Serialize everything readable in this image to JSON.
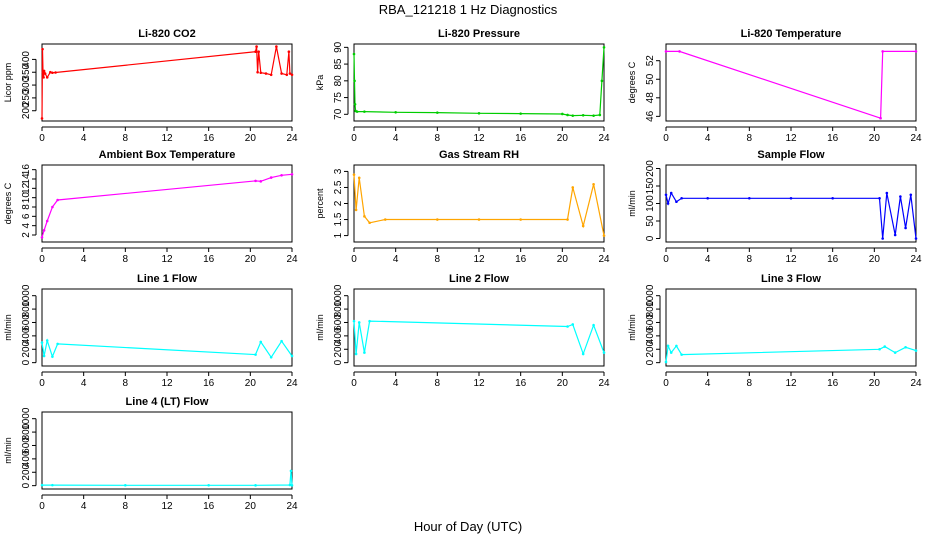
{
  "figure": {
    "title": "RBA_121218  1 Hz Diagnostics",
    "xlabel": "Hour of Day (UTC)"
  },
  "colors": {
    "red": "#ff0000",
    "green": "#00cd00",
    "magenta": "#ff00ff",
    "orange": "#ffa500",
    "blue": "#0000ff",
    "cyan": "#00ffff",
    "axis": "#000000"
  },
  "chart_data": [
    {
      "id": "co2",
      "type": "line",
      "title": "Li-820 CO2",
      "ylabel": "Licor ppm",
      "color": "red",
      "xlim": [
        0,
        24
      ],
      "ylim": [
        160,
        460
      ],
      "xticks": [
        0,
        4,
        8,
        12,
        16,
        20,
        24
      ],
      "yticks": [
        200,
        250,
        300,
        350,
        400
      ],
      "series": [
        {
          "name": "CO2",
          "x": [
            0,
            0.05,
            0.1,
            0.15,
            0.2,
            0.3,
            0.5,
            0.8,
            1.0,
            1.3,
            20.5,
            20.6,
            20.7,
            20.8,
            21.0,
            21.5,
            22.0,
            22.5,
            23.0,
            23.5,
            23.7,
            23.8,
            24.0
          ],
          "y": [
            170,
            440,
            350,
            330,
            355,
            345,
            330,
            350,
            348,
            349,
            430,
            450,
            350,
            430,
            348,
            345,
            340,
            450,
            345,
            340,
            430,
            345,
            340
          ]
        }
      ]
    },
    {
      "id": "pressure",
      "type": "line",
      "title": "Li-820 Pressure",
      "ylabel": "kPa",
      "color": "green",
      "xlim": [
        0,
        24
      ],
      "ylim": [
        68,
        91
      ],
      "xticks": [
        0,
        4,
        8,
        12,
        16,
        20,
        24
      ],
      "yticks": [
        70,
        75,
        80,
        85,
        90
      ],
      "series": [
        {
          "name": "Pressure",
          "x": [
            0,
            0.05,
            0.1,
            0.15,
            0.3,
            1.0,
            4.0,
            8.0,
            12.0,
            16.0,
            20.0,
            20.5,
            21.0,
            22.0,
            23.0,
            23.6,
            23.8,
            24.0
          ],
          "y": [
            88,
            80,
            73,
            71,
            70.8,
            70.8,
            70.6,
            70.5,
            70.3,
            70.2,
            70.1,
            69.8,
            69.6,
            69.7,
            69.6,
            69.8,
            80,
            90
          ]
        }
      ]
    },
    {
      "id": "licor_temp",
      "type": "line",
      "title": "Li-820 Temperature",
      "ylabel": "degrees C",
      "color": "magenta",
      "xlim": [
        0,
        24
      ],
      "ylim": [
        45.5,
        53.8
      ],
      "xticks": [
        0,
        4,
        8,
        12,
        16,
        20,
        24
      ],
      "yticks": [
        46,
        48,
        50,
        52
      ],
      "series": [
        {
          "name": "Temperature",
          "x": [
            0,
            1.3,
            20.6,
            20.8,
            24.0
          ],
          "y": [
            53.0,
            53.0,
            45.8,
            53.0,
            53.0
          ]
        }
      ]
    },
    {
      "id": "ambient_temp",
      "type": "line",
      "title": "Ambient Box Temperature",
      "ylabel": "degrees C",
      "color": "magenta",
      "xlim": [
        0,
        24
      ],
      "ylim": [
        0.5,
        17
      ],
      "xticks": [
        0,
        4,
        8,
        12,
        16,
        20,
        24
      ],
      "yticks": [
        2,
        4,
        6,
        8,
        10,
        12,
        14,
        16
      ],
      "series": [
        {
          "name": "Temperature",
          "x": [
            0,
            0.2,
            0.5,
            1.0,
            1.5,
            20.5,
            21.0,
            22.0,
            23.0,
            24.0
          ],
          "y": [
            1.5,
            3,
            5,
            8,
            9.5,
            13.6,
            13.5,
            14.3,
            14.8,
            15
          ]
        }
      ]
    },
    {
      "id": "rh",
      "type": "line",
      "title": "Gas Stream RH",
      "ylabel": "percent",
      "color": "orange",
      "xlim": [
        0,
        24
      ],
      "ylim": [
        0.8,
        3.2
      ],
      "xticks": [
        0,
        4,
        8,
        12,
        16,
        20,
        24
      ],
      "yticks": [
        1.0,
        1.5,
        2.0,
        2.5,
        3.0
      ],
      "series": [
        {
          "name": "RH",
          "x": [
            0,
            0.2,
            0.5,
            1.0,
            1.5,
            3.0,
            8.0,
            12.0,
            16.0,
            20.5,
            21.0,
            22.0,
            23.0,
            24.0
          ],
          "y": [
            2.9,
            1.8,
            2.8,
            1.6,
            1.4,
            1.5,
            1.5,
            1.5,
            1.5,
            1.5,
            2.5,
            1.3,
            2.6,
            1.0
          ]
        }
      ]
    },
    {
      "id": "sample_flow",
      "type": "line",
      "title": "Sample Flow",
      "ylabel": "ml/min",
      "color": "blue",
      "xlim": [
        0,
        24
      ],
      "ylim": [
        -10,
        210
      ],
      "xticks": [
        0,
        4,
        8,
        12,
        16,
        20,
        24
      ],
      "yticks": [
        0,
        50,
        100,
        150,
        200
      ],
      "series": [
        {
          "name": "Sample Flow",
          "x": [
            0,
            0.2,
            0.5,
            1.0,
            1.5,
            4.0,
            8.0,
            12.0,
            16.0,
            20.5,
            20.8,
            21.2,
            22.0,
            22.5,
            23.0,
            23.5,
            24.0
          ],
          "y": [
            125,
            100,
            130,
            105,
            115,
            115,
            115,
            115,
            115,
            115,
            0,
            130,
            10,
            120,
            30,
            125,
            0
          ]
        }
      ]
    },
    {
      "id": "line1",
      "type": "line",
      "title": "Line 1 Flow",
      "ylabel": "ml/min",
      "color": "cyan",
      "xlim": [
        0,
        24
      ],
      "ylim": [
        -50,
        1100
      ],
      "xticks": [
        0,
        4,
        8,
        12,
        16,
        20,
        24
      ],
      "yticks": [
        0,
        200,
        400,
        600,
        800,
        1000
      ],
      "series": [
        {
          "name": "Line 1",
          "x": [
            0,
            0.2,
            0.5,
            1.0,
            1.5,
            20.5,
            21.0,
            22.0,
            23.0,
            24.0
          ],
          "y": [
            300,
            100,
            330,
            90,
            280,
            120,
            310,
            80,
            320,
            100
          ]
        }
      ]
    },
    {
      "id": "line2",
      "type": "line",
      "title": "Line 2 Flow",
      "ylabel": "ml/min",
      "color": "cyan",
      "xlim": [
        0,
        24
      ],
      "ylim": [
        -50,
        1100
      ],
      "xticks": [
        0,
        4,
        8,
        12,
        16,
        20,
        24
      ],
      "yticks": [
        0,
        200,
        400,
        600,
        800,
        1000
      ],
      "series": [
        {
          "name": "Line 2",
          "x": [
            0,
            0.2,
            0.5,
            1.0,
            1.5,
            20.5,
            21.0,
            22.0,
            23.0,
            24.0
          ],
          "y": [
            620,
            130,
            600,
            150,
            620,
            540,
            570,
            130,
            560,
            150
          ]
        }
      ]
    },
    {
      "id": "line3",
      "type": "line",
      "title": "Line 3 Flow",
      "ylabel": "ml/min",
      "color": "cyan",
      "xlim": [
        0,
        24
      ],
      "ylim": [
        -50,
        1100
      ],
      "xticks": [
        0,
        4,
        8,
        12,
        16,
        20,
        24
      ],
      "yticks": [
        0,
        200,
        400,
        600,
        800,
        1000
      ],
      "series": [
        {
          "name": "Line 3",
          "x": [
            0,
            0.2,
            0.5,
            1.0,
            1.5,
            20.5,
            21.0,
            22.0,
            23.0,
            24.0
          ],
          "y": [
            10,
            250,
            150,
            250,
            120,
            200,
            240,
            150,
            230,
            180
          ]
        }
      ]
    },
    {
      "id": "line4",
      "type": "line",
      "title": "Line 4 (LT) Flow",
      "ylabel": "ml/min",
      "color": "cyan",
      "xlim": [
        0,
        24
      ],
      "ylim": [
        -50,
        1100
      ],
      "xticks": [
        0,
        4,
        8,
        12,
        16,
        20,
        24
      ],
      "yticks": [
        0,
        200,
        400,
        600,
        800,
        1000
      ],
      "series": [
        {
          "name": "Line 4",
          "x": [
            0,
            1.0,
            8.0,
            16.0,
            20.5,
            23.8,
            23.9,
            24.0
          ],
          "y": [
            8,
            8,
            6,
            6,
            5,
            10,
            220,
            5
          ]
        }
      ]
    }
  ]
}
